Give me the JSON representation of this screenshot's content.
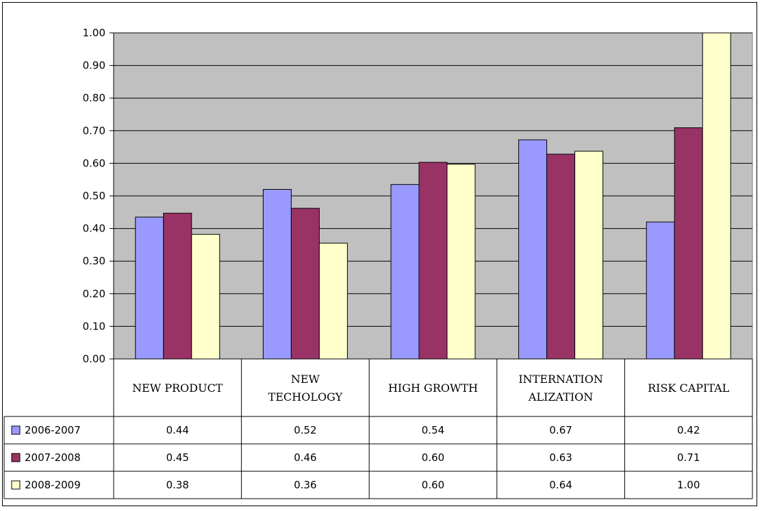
{
  "chart_data": {
    "type": "bar",
    "categories": [
      [
        "NEW PRODUCT"
      ],
      [
        "NEW",
        "TECHOLOGY"
      ],
      [
        "HIGH GROWTH"
      ],
      [
        "INTERNATION",
        "ALIZATION"
      ],
      [
        "RISK CAPITAL"
      ]
    ],
    "series": [
      {
        "name": "2006-2007",
        "color": "#9999ff",
        "values": [
          0.435,
          0.52,
          0.535,
          0.672,
          0.42
        ],
        "labels": [
          "0.44",
          "0.52",
          "0.54",
          "0.67",
          "0.42"
        ]
      },
      {
        "name": "2007-2008",
        "color": "#993366",
        "values": [
          0.447,
          0.462,
          0.603,
          0.628,
          0.709
        ],
        "labels": [
          "0.45",
          "0.46",
          "0.60",
          "0.63",
          "0.71"
        ]
      },
      {
        "name": "2008-2009",
        "color": "#ffffcc",
        "values": [
          0.382,
          0.355,
          0.597,
          0.637,
          1.0
        ],
        "labels": [
          "0.38",
          "0.36",
          "0.60",
          "0.64",
          "1.00"
        ]
      }
    ],
    "y_ticks": [
      "0.00",
      "0.10",
      "0.20",
      "0.30",
      "0.40",
      "0.50",
      "0.60",
      "0.70",
      "0.80",
      "0.90",
      "1.00"
    ],
    "ylim": [
      0,
      1
    ],
    "grid": true,
    "plot_background": "#c0c0c0",
    "legend": "data-table"
  }
}
